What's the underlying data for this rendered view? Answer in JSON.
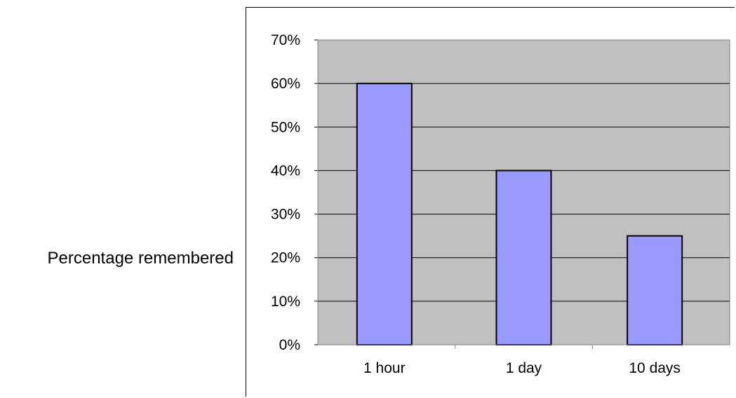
{
  "chart_data": {
    "type": "bar",
    "categories": [
      "1 hour",
      "1 day",
      "10 days"
    ],
    "values": [
      60,
      40,
      25
    ],
    "title": "",
    "xlabel": "",
    "ylabel": "Percentage remembered",
    "ylim": [
      0,
      70
    ],
    "ytick_step": 10,
    "ytick_labels": [
      "0%",
      "10%",
      "20%",
      "30%",
      "40%",
      "50%",
      "60%",
      "70%"
    ],
    "grid": true,
    "legend": "none",
    "colors": {
      "bar_fill": "#9999ff",
      "plot_background": "#c0c0c0",
      "gridline": "#000000"
    }
  }
}
